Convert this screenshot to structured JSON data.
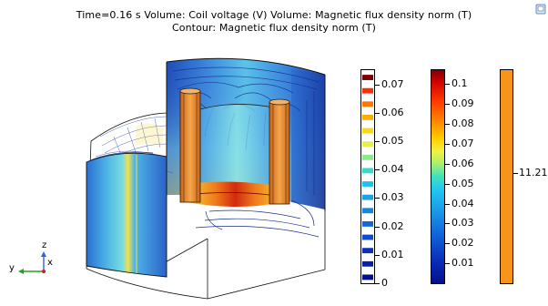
{
  "title": {
    "line1": "Time=0.16 s   Volume: Coil voltage (V)  Volume: Magnetic flux density norm (T)",
    "line2": "Contour: Magnetic flux density norm (T)"
  },
  "corner_button_icon": "window-restore-icon",
  "legends": {
    "contour": {
      "ticks": [
        "0.07",
        "0.06",
        "0.05",
        "0.04",
        "0.03",
        "0.02",
        "0.01",
        "0"
      ],
      "tick_values": [
        0.07,
        0.06,
        0.05,
        0.04,
        0.03,
        0.02,
        0.01,
        0
      ],
      "min": 0,
      "max": 0.075,
      "levels": [
        0.0,
        0.005,
        0.01,
        0.015,
        0.02,
        0.025,
        0.03,
        0.035,
        0.04,
        0.045,
        0.05,
        0.055,
        0.06,
        0.065,
        0.07,
        0.075
      ],
      "colormap": "rainbow"
    },
    "volume_flux": {
      "ticks": [
        "0.1",
        "0.09",
        "0.08",
        "0.07",
        "0.06",
        "0.05",
        "0.04",
        "0.03",
        "0.02",
        "0.01"
      ],
      "tick_values": [
        0.1,
        0.09,
        0.08,
        0.07,
        0.06,
        0.05,
        0.04,
        0.03,
        0.02,
        0.01
      ],
      "min": 0,
      "max": 0.107,
      "colormap": "rainbow"
    },
    "coil_voltage": {
      "ticks": [
        "11.21"
      ],
      "tick_values": [
        11.21
      ],
      "color": "#f7941d"
    }
  },
  "axes_triad": {
    "z": "z",
    "y": "y",
    "x": "x",
    "z_color": "#3a5fd6",
    "y_color": "#2a9d2a",
    "x_color": "#d61a1a"
  },
  "colors": {
    "coil": "#f29a3c",
    "deep_blue": "#1c3fa8",
    "light_blue": "#4fa8e8",
    "cyan": "#5ee0e8",
    "yellow": "#f2e04a",
    "orange": "#f07a1a",
    "red": "#c41010"
  }
}
